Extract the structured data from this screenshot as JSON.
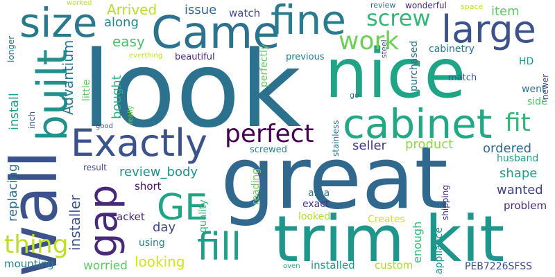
{
  "words": [
    {
      "text": "look",
      "color": "#2c728e"
    },
    {
      "text": "nice",
      "color": "#20a486"
    },
    {
      "text": "great",
      "color": "#31688e"
    },
    {
      "text": "trim kit",
      "color": "#1f968b"
    },
    {
      "text": "wall",
      "color": "#3b528b"
    },
    {
      "text": "Came",
      "color": "#2c728e"
    },
    {
      "text": "fine",
      "color": "#287c8e"
    },
    {
      "text": "large",
      "color": "#3b528b"
    },
    {
      "text": "size",
      "color": "#2a788e"
    },
    {
      "text": "built",
      "color": "#21918c"
    },
    {
      "text": "Exactly",
      "color": "#3b528b"
    },
    {
      "text": "cabinet",
      "color": "#22a884"
    },
    {
      "text": "gap",
      "color": "#482878"
    },
    {
      "text": "GE",
      "color": "#20a486"
    },
    {
      "text": "fill",
      "color": "#1f9e89"
    },
    {
      "text": "perfect",
      "color": "#440154"
    },
    {
      "text": "fit",
      "color": "#35b779"
    },
    {
      "text": "thing",
      "color": "#bddf26"
    },
    {
      "text": "work",
      "color": "#6ece58"
    },
    {
      "text": "screw",
      "color": "#35b779"
    },
    {
      "text": "Arrived",
      "color": "#b5de2b"
    },
    {
      "text": "issue",
      "color": "#31688e"
    },
    {
      "text": "watch",
      "color": "#3e4989"
    },
    {
      "text": "item",
      "color": "#5ec962"
    },
    {
      "text": "along",
      "color": "#26828e"
    },
    {
      "text": "easy",
      "color": "#4ac16d"
    },
    {
      "text": "Advantium",
      "color": "#2a788e"
    },
    {
      "text": "installer",
      "color": "#3b528b"
    },
    {
      "text": "install",
      "color": "#1f9e89"
    },
    {
      "text": "replacing",
      "color": "#2c728e"
    },
    {
      "text": "bought",
      "color": "#29af7f"
    },
    {
      "text": "product",
      "color": "#90d743"
    },
    {
      "text": "seller",
      "color": "#443983"
    },
    {
      "text": "ordered",
      "color": "#31688e"
    },
    {
      "text": "review_body",
      "color": "#21918c"
    },
    {
      "text": "shape",
      "color": "#1f9e89"
    },
    {
      "text": "wanted",
      "color": "#414487"
    },
    {
      "text": "problem",
      "color": "#482878"
    },
    {
      "text": "day",
      "color": "#414487"
    },
    {
      "text": "short",
      "color": "#471063"
    },
    {
      "text": "looking",
      "color": "#d2e21b"
    },
    {
      "text": "worried",
      "color": "#5ec962"
    },
    {
      "text": "mounting",
      "color": "#26828e"
    },
    {
      "text": "installed",
      "color": "#1f968b"
    },
    {
      "text": "custom",
      "color": "#a8db34"
    },
    {
      "text": "PEB7226SFSS",
      "color": "#3e4989"
    },
    {
      "text": "Creates",
      "color": "#d2e21b"
    },
    {
      "text": "looked",
      "color": "#addc30"
    },
    {
      "text": "exact",
      "color": "#46327e"
    },
    {
      "text": "area",
      "color": "#2e6f8e"
    },
    {
      "text": "quality",
      "color": "#35b779"
    },
    {
      "text": "reading",
      "color": "#6ece58"
    },
    {
      "text": "enough",
      "color": "#35b779"
    },
    {
      "text": "appliance",
      "color": "#21918c"
    },
    {
      "text": "shipping",
      "color": "#482878"
    },
    {
      "text": "husband",
      "color": "#1f9e89"
    },
    {
      "text": "HD",
      "color": "#1f968b"
    },
    {
      "text": "went",
      "color": "#2c728e"
    },
    {
      "text": "side",
      "color": "#4ac16d"
    },
    {
      "text": "newer",
      "color": "#3e4989"
    },
    {
      "text": "match",
      "color": "#39568c"
    },
    {
      "text": "purchased",
      "color": "#2e6f8e"
    },
    {
      "text": "cabinetry",
      "color": "#2c728e"
    },
    {
      "text": "previous",
      "color": "#2a788e"
    },
    {
      "text": "perfectly",
      "color": "#5ec962"
    },
    {
      "text": "beautiful",
      "color": "#482878"
    },
    {
      "text": "everthing",
      "color": "#c8e020"
    },
    {
      "text": "steel",
      "color": "#414487"
    },
    {
      "text": "stainless",
      "color": "#2a788e"
    },
    {
      "text": "go",
      "color": "#2c728e"
    },
    {
      "text": "screwed",
      "color": "#277f8e"
    },
    {
      "text": "review",
      "color": "#31688e"
    },
    {
      "text": "wonderful",
      "color": "#482878"
    },
    {
      "text": "space",
      "color": "#c2df23"
    },
    {
      "text": "worked",
      "color": "#b8de29"
    },
    {
      "text": "longer",
      "color": "#2e6f8e"
    },
    {
      "text": "inch",
      "color": "#38598c"
    },
    {
      "text": "little",
      "color": "#5ec962"
    },
    {
      "text": "good",
      "color": "#3b528b"
    },
    {
      "text": "really",
      "color": "#65cb5e"
    },
    {
      "text": "result",
      "color": "#3e4989"
    },
    {
      "text": "acket",
      "color": "#482878"
    },
    {
      "text": "using",
      "color": "#26828e"
    },
    {
      "text": "oven",
      "color": "#20a486"
    }
  ]
}
